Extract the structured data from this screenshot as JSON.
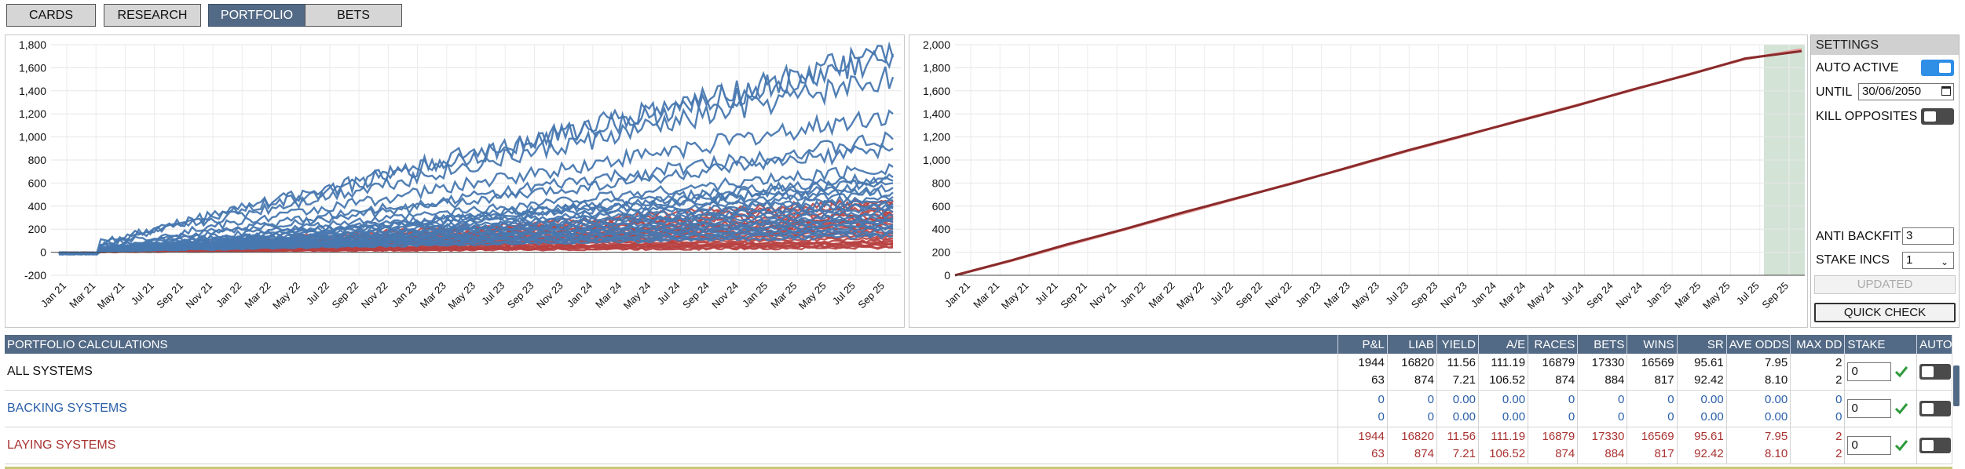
{
  "tabs": [
    {
      "label": "CARDS",
      "active": false
    },
    {
      "label": "RESEARCH",
      "active": false
    },
    {
      "label": "PORTFOLIO",
      "active": true
    },
    {
      "label": "BETS",
      "active": false
    }
  ],
  "colors": {
    "accent": "#536a86",
    "backing": "#2a5fa8",
    "laying": "#a93232",
    "line_blue": "#4878b0",
    "line_red": "#b84040",
    "toggle_on": "#2f8ee6"
  },
  "chart_data": [
    {
      "type": "line",
      "ylim": [
        -200,
        1800
      ],
      "yticks": [
        "1,800",
        "1,600",
        "1,400",
        "1,200",
        "1,000",
        "800",
        "600",
        "400",
        "200",
        "0",
        "-200"
      ],
      "xticks": [
        "Jan 21",
        "Mar 21",
        "May 21",
        "Jul 21",
        "Sep 21",
        "Nov 21",
        "Jan 22",
        "Mar 22",
        "May 22",
        "Jul 22",
        "Sep 22",
        "Nov 22",
        "Jan 23",
        "Mar 23",
        "May 23",
        "Jul 23",
        "Sep 23",
        "Nov 23",
        "Jan 24",
        "Mar 24",
        "May 24",
        "Jul 24",
        "Sep 24",
        "Nov 24",
        "Jan 25",
        "Mar 25",
        "May 25",
        "Jul 25",
        "Sep 25"
      ],
      "series_blue_final": [
        1720,
        1690,
        1520,
        1200,
        980,
        900,
        740,
        650,
        620,
        600,
        560,
        520,
        480,
        450,
        420,
        400,
        380,
        350,
        320,
        300,
        280,
        260,
        240,
        220,
        200,
        180,
        160,
        140
      ],
      "series_red_final": [
        450,
        420,
        380,
        350,
        320,
        300,
        280,
        260,
        240,
        220,
        200,
        180,
        160,
        140,
        120,
        100,
        90,
        80,
        70,
        60,
        50,
        40
      ],
      "grid": true
    },
    {
      "type": "line",
      "ylim": [
        0,
        2000
      ],
      "yticks": [
        "2,000",
        "1,800",
        "1,600",
        "1,400",
        "1,200",
        "1,000",
        "800",
        "600",
        "400",
        "200",
        "0"
      ],
      "xticks": [
        "Jan 21",
        "Mar 21",
        "May 21",
        "Jul 21",
        "Sep 21",
        "Nov 21",
        "Jan 22",
        "Mar 22",
        "May 22",
        "Jul 22",
        "Sep 22",
        "Nov 22",
        "Jan 23",
        "Mar 23",
        "May 23",
        "Jul 23",
        "Sep 23",
        "Nov 23",
        "Jan 24",
        "Mar 24",
        "May 24",
        "Jul 24",
        "Sep 24",
        "Nov 24",
        "Jan 25",
        "Mar 25",
        "May 25",
        "Jul 25",
        "Sep 25"
      ],
      "series": [
        {
          "values": [
            0,
            130,
            270,
            400,
            540,
            670,
            800,
            940,
            1080,
            1210,
            1340,
            1470,
            1610,
            1740,
            1880,
            1944
          ]
        },
        {
          "values": [
            0,
            125,
            262,
            395,
            530,
            665,
            805,
            935,
            1075,
            1205,
            1345,
            1475,
            1605,
            1745,
            1875,
            1960
          ]
        }
      ],
      "highlight_band": "Aug 25 – end",
      "grid": true
    }
  ],
  "settings": {
    "title": "SETTINGS",
    "auto_active_label": "AUTO ACTIVE",
    "auto_active": true,
    "until_label": "UNTIL",
    "until_value": "30/06/2050",
    "kill_opposites_label": "KILL OPPOSITES",
    "kill_opposites": false,
    "anti_backfit_label": "ANTI BACKFIT",
    "anti_backfit_value": "3",
    "stake_incs_label": "STAKE INCS",
    "stake_incs_value": "1",
    "updated_label": "UPDATED",
    "quick_check_label": "QUICK CHECK"
  },
  "calc": {
    "title": "PORTFOLIO CALCULATIONS",
    "columns": [
      "P&L",
      "LIAB",
      "YIELD",
      "A/E",
      "RACES",
      "BETS",
      "WINS",
      "SR",
      "AVE ODDS",
      "MAX DD",
      "STAKE",
      "AUTO"
    ],
    "rows": [
      {
        "name": "ALL SYSTEMS",
        "line1": [
          "1944",
          "16820",
          "11.56",
          "111.19",
          "16879",
          "17330",
          "16569",
          "95.61",
          "7.95",
          "2"
        ],
        "line2": [
          "63",
          "874",
          "7.21",
          "106.52",
          "874",
          "884",
          "817",
          "92.42",
          "8.10",
          "2"
        ],
        "stake": "0"
      },
      {
        "name": "BACKING SYSTEMS",
        "line1": [
          "0",
          "0",
          "0.00",
          "0.00",
          "0",
          "0",
          "0",
          "0.00",
          "0.00",
          "0"
        ],
        "line2": [
          "0",
          "0",
          "0.00",
          "0.00",
          "0",
          "0",
          "0",
          "0.00",
          "0.00",
          "0"
        ],
        "stake": "0"
      },
      {
        "name": "LAYING SYSTEMS",
        "line1": [
          "1944",
          "16820",
          "11.56",
          "111.19",
          "16879",
          "17330",
          "16569",
          "95.61",
          "7.95",
          "2"
        ],
        "line2": [
          "63",
          "874",
          "7.21",
          "106.52",
          "874",
          "884",
          "817",
          "92.42",
          "8.10",
          "2"
        ],
        "stake": "0"
      }
    ]
  }
}
